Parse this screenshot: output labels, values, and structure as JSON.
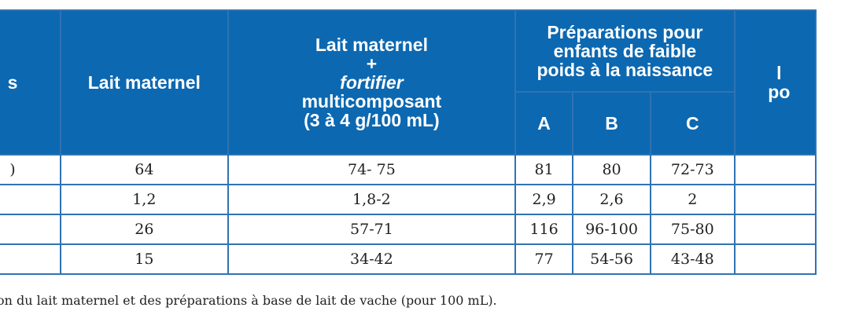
{
  "table": {
    "headers": {
      "col0_fragment": "s",
      "breast_milk": "Lait maternel",
      "fortified_line1": "Lait maternel",
      "fortified_plus": "+",
      "fortified_fortifier": "fortifier",
      "fortified_line3": "multicomposant",
      "fortified_line4": "(3 à 4 g/100 mL)",
      "lbw_group_line1": "Préparations pour",
      "lbw_group_line2": "enfants de faible",
      "lbw_group_line3": "poids à la naissance",
      "sub_a": "A",
      "sub_b": "B",
      "sub_c": "C",
      "last_col_line1": "l",
      "last_col_line2": "po"
    },
    "rows": [
      {
        "label_fragment": ")",
        "breast_milk": "64",
        "fortified": "74- 75",
        "a": "81",
        "b": "80",
        "c": "72-73"
      },
      {
        "label_fragment": "",
        "breast_milk": "1,2",
        "fortified": "1,8-2",
        "a": "2,9",
        "b": "2,6",
        "c": "2"
      },
      {
        "label_fragment": "",
        "breast_milk": "26",
        "fortified": "57-71",
        "a": "116",
        "b": "96-100",
        "c": "75-80"
      },
      {
        "label_fragment": "",
        "breast_milk": "15",
        "fortified": "34-42",
        "a": "77",
        "b": "54-56",
        "c": "43-48"
      }
    ]
  },
  "caption": "on du lait maternel et des préparations à base de lait de vache (pour 100 mL).",
  "colors": {
    "header_bg": "#0c68b1",
    "border": "#2f73b3",
    "text": "#222222"
  }
}
